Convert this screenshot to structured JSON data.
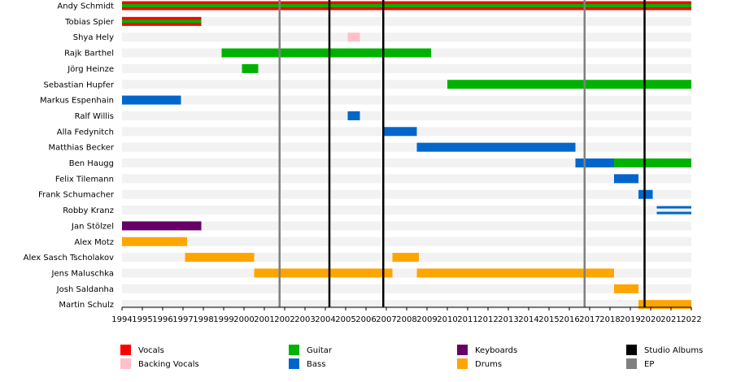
{
  "chart_data": {
    "type": "timeline",
    "title": "",
    "xlim": [
      1994,
      2022
    ],
    "x_ticks": [
      "1994",
      "1995",
      "1996",
      "1997",
      "1998",
      "1999",
      "2000",
      "2001",
      "2002",
      "2003",
      "2004",
      "2005",
      "2006",
      "2007",
      "2008",
      "2009",
      "2010",
      "2011",
      "2012",
      "2013",
      "2014",
      "2015",
      "2016",
      "2017",
      "2018",
      "2019",
      "2020",
      "2021",
      "2022"
    ],
    "role_colors": {
      "Vocals": "#ff0000",
      "Backing Vocals": "#ffc0cb",
      "Guitar": "#00b200",
      "Bass": "#0066cc",
      "Keyboards": "#660066",
      "Drums": "#ffa500",
      "Studio Albums": "#000000",
      "EP": "#808080"
    },
    "members": [
      {
        "name": "Andy Schmidt",
        "bars": [
          {
            "start": 1994,
            "end": 2022,
            "role": "Vocals"
          },
          {
            "start": 1994,
            "end": 2022,
            "role": "Guitar",
            "thin": true
          }
        ]
      },
      {
        "name": "Tobias Spier",
        "bars": [
          {
            "start": 1994,
            "end": 1997.9,
            "role": "Vocals"
          },
          {
            "start": 1994,
            "end": 1997.9,
            "role": "Guitar",
            "thin": true
          }
        ]
      },
      {
        "name": "Shya Hely",
        "bars": [
          {
            "start": 2005.1,
            "end": 2005.7,
            "role": "Backing Vocals"
          }
        ]
      },
      {
        "name": "Rajk Barthel",
        "bars": [
          {
            "start": 1998.9,
            "end": 2009.2,
            "role": "Guitar"
          }
        ]
      },
      {
        "name": "Jörg Heinze",
        "bars": [
          {
            "start": 1999.9,
            "end": 2000.7,
            "role": "Guitar"
          }
        ]
      },
      {
        "name": "Sebastian Hupfer",
        "bars": [
          {
            "start": 2010.0,
            "end": 2022,
            "role": "Guitar"
          }
        ]
      },
      {
        "name": "Markus Espenhain",
        "bars": [
          {
            "start": 1994,
            "end": 1996.9,
            "role": "Bass"
          }
        ]
      },
      {
        "name": "Ralf Willis",
        "bars": [
          {
            "start": 2005.1,
            "end": 2005.7,
            "role": "Bass"
          }
        ]
      },
      {
        "name": "Alla Fedynitch",
        "bars": [
          {
            "start": 2006.9,
            "end": 2008.5,
            "role": "Bass"
          }
        ]
      },
      {
        "name": "Matthias Becker",
        "bars": [
          {
            "start": 2008.5,
            "end": 2016.3,
            "role": "Bass"
          }
        ]
      },
      {
        "name": "Ben Haugg",
        "bars": [
          {
            "start": 2016.3,
            "end": 2018.2,
            "role": "Bass"
          },
          {
            "start": 2018.2,
            "end": 2022,
            "role": "Guitar"
          }
        ]
      },
      {
        "name": "Felix Tilemann",
        "bars": [
          {
            "start": 2018.2,
            "end": 2019.4,
            "role": "Bass"
          }
        ]
      },
      {
        "name": "Frank Schumacher",
        "bars": [
          {
            "start": 2019.4,
            "end": 2020.1,
            "role": "Bass"
          }
        ]
      },
      {
        "name": "Robby Kranz",
        "bars": [
          {
            "start": 2020.3,
            "end": 2022,
            "role": "Bass",
            "double": true
          }
        ]
      },
      {
        "name": "Jan Stölzel",
        "bars": [
          {
            "start": 1994,
            "end": 1997.9,
            "role": "Keyboards"
          }
        ]
      },
      {
        "name": "Alex Motz",
        "bars": [
          {
            "start": 1994,
            "end": 1997.2,
            "role": "Drums"
          }
        ]
      },
      {
        "name": "Alex Sasch Tscholakov",
        "bars": [
          {
            "start": 1997.1,
            "end": 2000.5,
            "role": "Drums"
          },
          {
            "start": 2007.3,
            "end": 2008.6,
            "role": "Drums"
          }
        ]
      },
      {
        "name": "Jens Maluschka",
        "bars": [
          {
            "start": 2000.5,
            "end": 2007.3,
            "role": "Drums"
          },
          {
            "start": 2008.5,
            "end": 2018.2,
            "role": "Drums"
          }
        ]
      },
      {
        "name": "Josh Saldanha",
        "bars": [
          {
            "start": 2018.2,
            "end": 2019.4,
            "role": "Drums"
          }
        ]
      },
      {
        "name": "Martin Schulz",
        "bars": [
          {
            "start": 2019.4,
            "end": 2022,
            "role": "Drums"
          }
        ]
      }
    ],
    "events": [
      {
        "x": 2001.75,
        "type": "EP"
      },
      {
        "x": 2004.2,
        "type": "Studio Albums"
      },
      {
        "x": 2006.85,
        "type": "Studio Albums"
      },
      {
        "x": 2016.75,
        "type": "EP"
      },
      {
        "x": 2019.7,
        "type": "Studio Albums"
      }
    ],
    "legend": [
      {
        "label": "Vocals",
        "role": "Vocals"
      },
      {
        "label": "Backing Vocals",
        "role": "Backing Vocals"
      },
      {
        "label": "Guitar",
        "role": "Guitar"
      },
      {
        "label": "Bass",
        "role": "Bass"
      },
      {
        "label": "Keyboards",
        "role": "Keyboards"
      },
      {
        "label": "Drums",
        "role": "Drums"
      },
      {
        "label": "Studio Albums",
        "role": "Studio Albums"
      },
      {
        "label": "EP",
        "role": "EP"
      }
    ]
  }
}
